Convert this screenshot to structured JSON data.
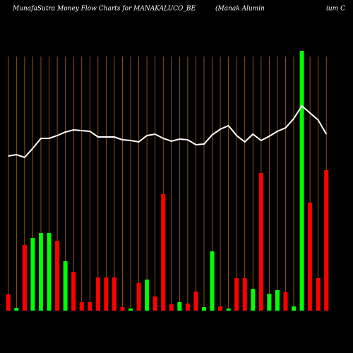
{
  "chart_data": {
    "type": "bar",
    "title": "MunafaSutra  Money Flow  Charts for MANAKALUCO_BE",
    "subtitle": [
      "(Manak Alumin",
      "ium C"
    ],
    "categories": [
      null,
      null,
      null,
      null,
      null,
      null,
      null,
      null,
      null,
      null,
      null,
      null,
      null,
      null,
      null,
      null,
      null,
      null,
      null,
      null,
      null,
      null,
      null,
      null,
      null,
      null,
      null,
      null,
      null,
      null,
      null,
      null,
      null,
      null,
      null,
      null,
      null,
      null,
      null,
      null
    ],
    "values": [
      23,
      4,
      93,
      103,
      110,
      110,
      99,
      70,
      55,
      12,
      12,
      47,
      47,
      47,
      5,
      3,
      39,
      44,
      20,
      165,
      9,
      12,
      10,
      27,
      5,
      84,
      6,
      3,
      46,
      46,
      31,
      195,
      24,
      29,
      26,
      6,
      368,
      153,
      46,
      199
    ],
    "colors": [
      "#ff0000",
      "#00ff00",
      "#ff0000",
      "#00ff00",
      "#00ff00",
      "#00ff00",
      "#ff0000",
      "#00ff00",
      "#ff0000",
      "#ff0000",
      "#ff0000",
      "#ff0000",
      "#ff0000",
      "#ff0000",
      "#ff0000",
      "#00ff00",
      "#ff0000",
      "#00ff00",
      "#ff0000",
      "#ff0000",
      "#ff0000",
      "#00ff00",
      "#ff0000",
      "#ff0000",
      "#00ff00",
      "#00ff00",
      "#ff0000",
      "#00ff00",
      "#ff0000",
      "#ff0000",
      "#00ff00",
      "#ff0000",
      "#00ff00",
      "#00ff00",
      "#ff0000",
      "#00ff00",
      "#00ff00",
      "#ff0000",
      "#ff0000",
      "#ff0000"
    ],
    "line": {
      "color": "#ffffff",
      "values": [
        219,
        221,
        217,
        230,
        244,
        244,
        248,
        253,
        256,
        255,
        254,
        246,
        246,
        246,
        242,
        241,
        239,
        248,
        250,
        244,
        240,
        243,
        242,
        235,
        236,
        249,
        257,
        262,
        248,
        239,
        250,
        241,
        247,
        254,
        259,
        272,
        290,
        280,
        270,
        250
      ]
    },
    "ylim": [
      0,
      370
    ],
    "grid": true,
    "grid_color": "#b5650f"
  }
}
